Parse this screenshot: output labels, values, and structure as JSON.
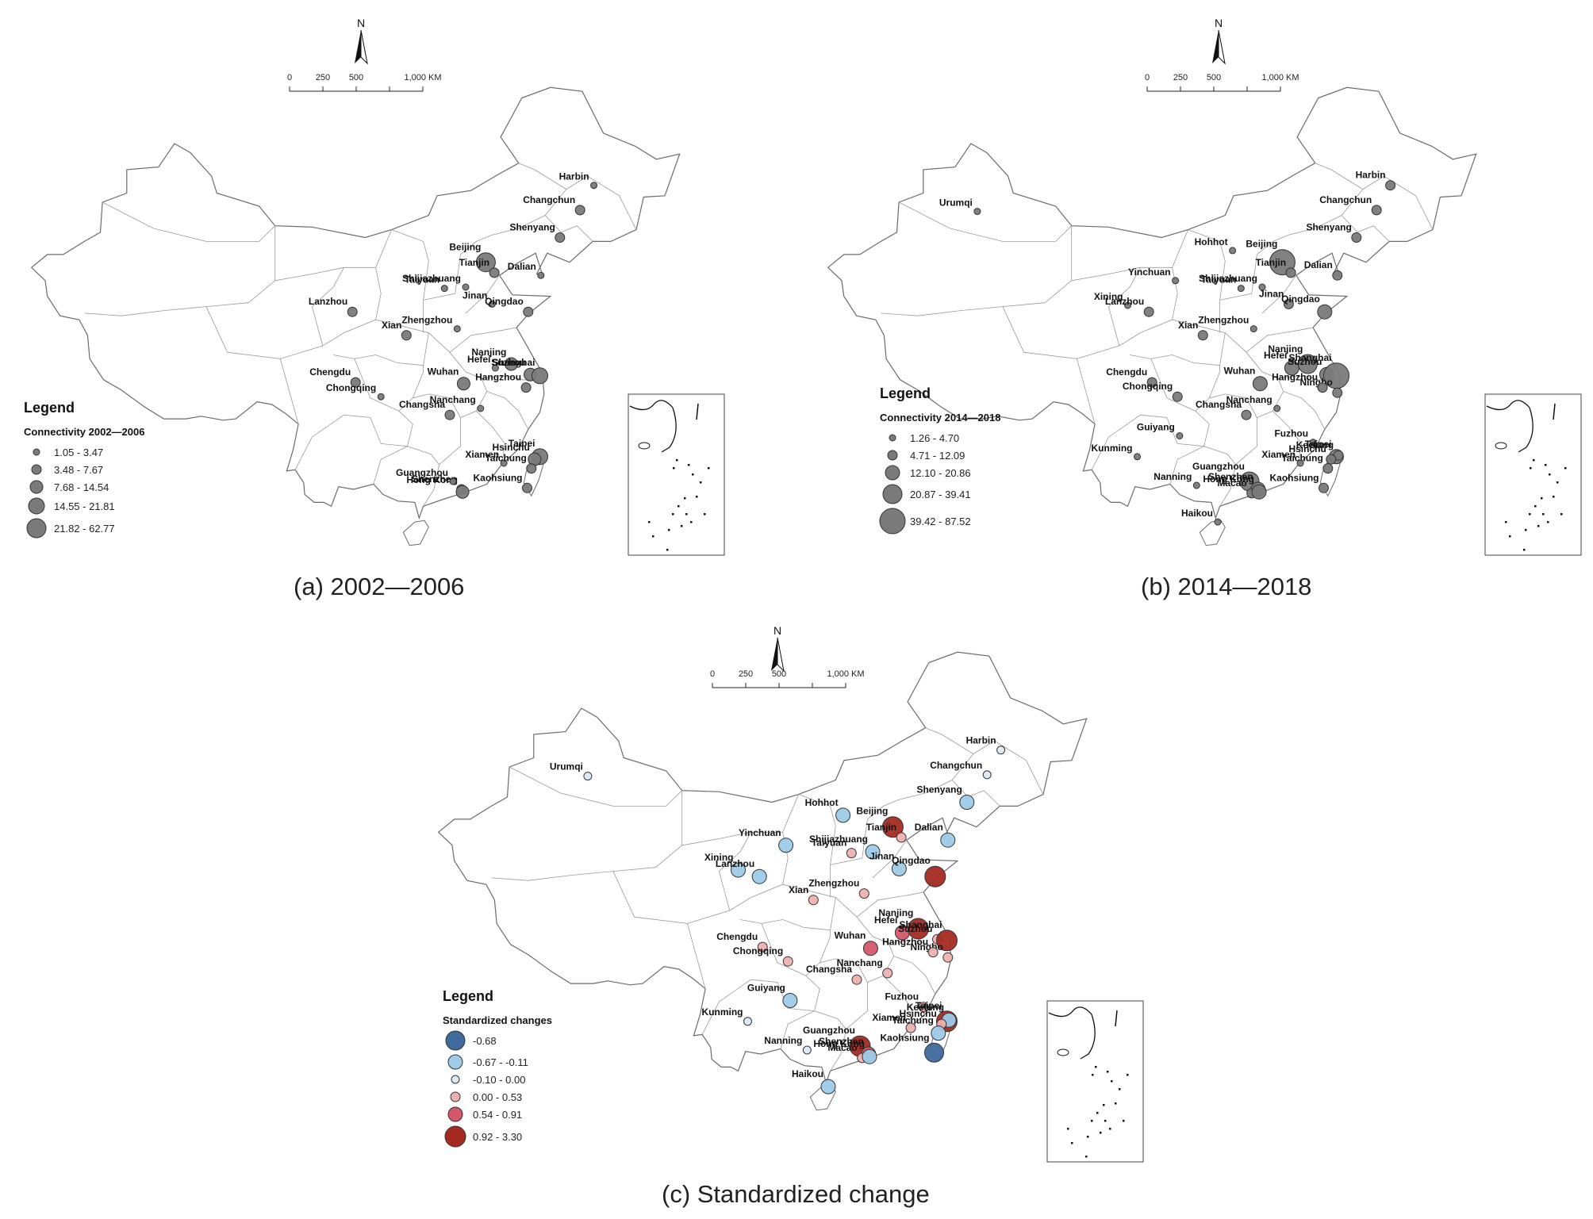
{
  "panels": [
    {
      "id": "a",
      "caption": "(a) 2002—2006",
      "legend": {
        "title": "Legend",
        "subtitle": "Connectivity 2002—2006",
        "classes": [
          {
            "label": "1.05 - 3.47",
            "r": 4,
            "color": "#7a7a7a"
          },
          {
            "label": "3.48 - 7.67",
            "r": 6,
            "color": "#7a7a7a"
          },
          {
            "label": "7.68 - 14.54",
            "r": 8,
            "color": "#7a7a7a"
          },
          {
            "label": "14.55 - 21.81",
            "r": 10,
            "color": "#7a7a7a"
          },
          {
            "label": "21.82 - 62.77",
            "r": 12,
            "color": "#7a7a7a"
          }
        ]
      },
      "scale": {
        "labels": [
          "0",
          "250",
          "500",
          "1,000 KM"
        ]
      },
      "north": "N",
      "cities": [
        {
          "name": "Harbin",
          "lon": 126.6,
          "lat": 45.8,
          "cls": 0
        },
        {
          "name": "Changchun",
          "lon": 125.3,
          "lat": 43.9,
          "cls": 1
        },
        {
          "name": "Shenyang",
          "lon": 123.4,
          "lat": 41.8,
          "cls": 1
        },
        {
          "name": "Beijing",
          "lon": 116.4,
          "lat": 39.9,
          "cls": 4
        },
        {
          "name": "Tianjin",
          "lon": 117.2,
          "lat": 39.1,
          "cls": 1
        },
        {
          "name": "Dalian",
          "lon": 121.6,
          "lat": 38.9,
          "cls": 0
        },
        {
          "name": "Taiyuan",
          "lon": 112.5,
          "lat": 37.9,
          "cls": 0
        },
        {
          "name": "Shijiazhuang",
          "lon": 114.5,
          "lat": 38.0,
          "cls": 0
        },
        {
          "name": "Jinan",
          "lon": 117.0,
          "lat": 36.7,
          "cls": 0
        },
        {
          "name": "Qingdao",
          "lon": 120.4,
          "lat": 36.1,
          "cls": 1
        },
        {
          "name": "Lanzhou",
          "lon": 103.8,
          "lat": 36.1,
          "cls": 1
        },
        {
          "name": "Xian",
          "lon": 108.9,
          "lat": 34.3,
          "cls": 1
        },
        {
          "name": "Zhengzhou",
          "lon": 113.7,
          "lat": 34.8,
          "cls": 0
        },
        {
          "name": "Hefei",
          "lon": 117.3,
          "lat": 31.8,
          "cls": 0
        },
        {
          "name": "Nanjing",
          "lon": 118.8,
          "lat": 32.1,
          "cls": 2
        },
        {
          "name": "Suzhou",
          "lon": 120.6,
          "lat": 31.3,
          "cls": 2
        },
        {
          "name": "Shanghai",
          "lon": 121.5,
          "lat": 31.2,
          "cls": 3
        },
        {
          "name": "Hangzhou",
          "lon": 120.2,
          "lat": 30.3,
          "cls": 1
        },
        {
          "name": "Wuhan",
          "lon": 114.3,
          "lat": 30.6,
          "cls": 2
        },
        {
          "name": "Chengdu",
          "lon": 104.1,
          "lat": 30.7,
          "cls": 1
        },
        {
          "name": "Chongqing",
          "lon": 106.5,
          "lat": 29.6,
          "cls": 0
        },
        {
          "name": "Nanchang",
          "lon": 115.9,
          "lat": 28.7,
          "cls": 0
        },
        {
          "name": "Changsha",
          "lon": 113.0,
          "lat": 28.2,
          "cls": 1
        },
        {
          "name": "Taipei",
          "lon": 121.5,
          "lat": 25.0,
          "cls": 3
        },
        {
          "name": "Hsinchu",
          "lon": 121.0,
          "lat": 24.8,
          "cls": 2
        },
        {
          "name": "Xiamen",
          "lon": 118.1,
          "lat": 24.5,
          "cls": 0
        },
        {
          "name": "Taichung",
          "lon": 120.7,
          "lat": 24.1,
          "cls": 1
        },
        {
          "name": "Kaohsiung",
          "lon": 120.3,
          "lat": 22.6,
          "cls": 1
        },
        {
          "name": "Shenzhen",
          "lon": 114.1,
          "lat": 22.5,
          "cls": 1
        },
        {
          "name": "Hong Kong",
          "lon": 114.2,
          "lat": 22.3,
          "cls": 2
        },
        {
          "name": "Guangzhou",
          "lon": 113.3,
          "lat": 23.1,
          "cls": 0
        }
      ]
    },
    {
      "id": "b",
      "caption": "(b) 2014—2018",
      "legend": {
        "title": "Legend",
        "subtitle": "Connectivity 2014—2018",
        "classes": [
          {
            "label": "1.26 - 4.70",
            "r": 4,
            "color": "#7a7a7a"
          },
          {
            "label": "4.71 - 12.09",
            "r": 6,
            "color": "#7a7a7a"
          },
          {
            "label": "12.10 - 20.86",
            "r": 9,
            "color": "#7a7a7a"
          },
          {
            "label": "20.87 - 39.41",
            "r": 12,
            "color": "#7a7a7a"
          },
          {
            "label": "39.42 - 87.52",
            "r": 16,
            "color": "#7a7a7a"
          }
        ]
      },
      "scale": {
        "labels": [
          "0",
          "250",
          "500",
          "1,000 KM"
        ]
      },
      "north": "N",
      "cities": [
        {
          "name": "Urumqi",
          "lon": 87.6,
          "lat": 43.8,
          "cls": 0
        },
        {
          "name": "Harbin",
          "lon": 126.6,
          "lat": 45.8,
          "cls": 1
        },
        {
          "name": "Changchun",
          "lon": 125.3,
          "lat": 43.9,
          "cls": 1
        },
        {
          "name": "Shenyang",
          "lon": 123.4,
          "lat": 41.8,
          "cls": 1
        },
        {
          "name": "Hohhot",
          "lon": 111.7,
          "lat": 40.8,
          "cls": 0
        },
        {
          "name": "Beijing",
          "lon": 116.4,
          "lat": 39.9,
          "cls": 4
        },
        {
          "name": "Tianjin",
          "lon": 117.2,
          "lat": 39.1,
          "cls": 1
        },
        {
          "name": "Dalian",
          "lon": 121.6,
          "lat": 38.9,
          "cls": 1
        },
        {
          "name": "Yinchuan",
          "lon": 106.3,
          "lat": 38.5,
          "cls": 0
        },
        {
          "name": "Taiyuan",
          "lon": 112.5,
          "lat": 37.9,
          "cls": 0
        },
        {
          "name": "Shijiazhuang",
          "lon": 114.5,
          "lat": 38.0,
          "cls": 0
        },
        {
          "name": "Jinan",
          "lon": 117.0,
          "lat": 36.7,
          "cls": 1
        },
        {
          "name": "Qingdao",
          "lon": 120.4,
          "lat": 36.1,
          "cls": 2
        },
        {
          "name": "Xining",
          "lon": 101.8,
          "lat": 36.6,
          "cls": 0
        },
        {
          "name": "Lanzhou",
          "lon": 103.8,
          "lat": 36.1,
          "cls": 1
        },
        {
          "name": "Xian",
          "lon": 108.9,
          "lat": 34.3,
          "cls": 1
        },
        {
          "name": "Zhengzhou",
          "lon": 113.7,
          "lat": 34.8,
          "cls": 0
        },
        {
          "name": "Hefei",
          "lon": 117.3,
          "lat": 31.8,
          "cls": 2
        },
        {
          "name": "Nanjing",
          "lon": 118.8,
          "lat": 32.1,
          "cls": 3
        },
        {
          "name": "Suzhou",
          "lon": 120.6,
          "lat": 31.3,
          "cls": 2
        },
        {
          "name": "Shanghai",
          "lon": 121.5,
          "lat": 31.2,
          "cls": 4
        },
        {
          "name": "Ningbo",
          "lon": 121.6,
          "lat": 29.9,
          "cls": 1
        },
        {
          "name": "Hangzhou",
          "lon": 120.2,
          "lat": 30.3,
          "cls": 1
        },
        {
          "name": "Wuhan",
          "lon": 114.3,
          "lat": 30.6,
          "cls": 2
        },
        {
          "name": "Chengdu",
          "lon": 104.1,
          "lat": 30.7,
          "cls": 1
        },
        {
          "name": "Chongqing",
          "lon": 106.5,
          "lat": 29.6,
          "cls": 1
        },
        {
          "name": "Nanchang",
          "lon": 115.9,
          "lat": 28.7,
          "cls": 0
        },
        {
          "name": "Changsha",
          "lon": 113.0,
          "lat": 28.2,
          "cls": 1
        },
        {
          "name": "Guiyang",
          "lon": 106.7,
          "lat": 26.6,
          "cls": 0
        },
        {
          "name": "Fuzhou",
          "lon": 119.3,
          "lat": 26.1,
          "cls": 0
        },
        {
          "name": "Taipei",
          "lon": 121.5,
          "lat": 25.0,
          "cls": 2
        },
        {
          "name": "Keelung",
          "lon": 121.7,
          "lat": 25.1,
          "cls": 1
        },
        {
          "name": "Hsinchu",
          "lon": 121.0,
          "lat": 24.8,
          "cls": 1
        },
        {
          "name": "Taichung",
          "lon": 120.7,
          "lat": 24.1,
          "cls": 1
        },
        {
          "name": "Xiamen",
          "lon": 118.1,
          "lat": 24.5,
          "cls": 0
        },
        {
          "name": "Kaohsiung",
          "lon": 120.3,
          "lat": 22.6,
          "cls": 1
        },
        {
          "name": "Kunming",
          "lon": 102.7,
          "lat": 25.0,
          "cls": 0
        },
        {
          "name": "Guangzhou",
          "lon": 113.3,
          "lat": 23.1,
          "cls": 3
        },
        {
          "name": "Shenzhen",
          "lon": 114.1,
          "lat": 22.5,
          "cls": 2
        },
        {
          "name": "Macao",
          "lon": 113.5,
          "lat": 22.2,
          "cls": 1
        },
        {
          "name": "Hong Kong",
          "lon": 114.2,
          "lat": 22.3,
          "cls": 2
        },
        {
          "name": "Nanning",
          "lon": 108.3,
          "lat": 22.8,
          "cls": 0
        },
        {
          "name": "Haikou",
          "lon": 110.3,
          "lat": 20.0,
          "cls": 0
        }
      ]
    },
    {
      "id": "c",
      "caption": "(c) Standardized change",
      "legend": {
        "title": "Legend",
        "subtitle": "Standardized changes",
        "classes": [
          {
            "label": "-0.68",
            "r": 12,
            "color": "#3f6a9b"
          },
          {
            "label": "-0.67 - -0.11",
            "r": 9,
            "color": "#9ecbe8"
          },
          {
            "label": "-0.10 - 0.00",
            "r": 5,
            "color": "#dceaf5"
          },
          {
            "label": "0.00 - 0.53",
            "r": 6,
            "color": "#eeb1ae"
          },
          {
            "label": "0.54 - 0.91",
            "r": 9,
            "color": "#d6576b"
          },
          {
            "label": "0.92 - 3.30",
            "r": 13,
            "color": "#a52a22"
          }
        ]
      },
      "scale": {
        "labels": [
          "0",
          "250",
          "500",
          "1,000 KM"
        ]
      },
      "north": "N",
      "cities": [
        {
          "name": "Urumqi",
          "lon": 87.6,
          "lat": 43.8,
          "cls": 2
        },
        {
          "name": "Harbin",
          "lon": 126.6,
          "lat": 45.8,
          "cls": 2
        },
        {
          "name": "Changchun",
          "lon": 125.3,
          "lat": 43.9,
          "cls": 2
        },
        {
          "name": "Shenyang",
          "lon": 123.4,
          "lat": 41.8,
          "cls": 1
        },
        {
          "name": "Hohhot",
          "lon": 111.7,
          "lat": 40.8,
          "cls": 1
        },
        {
          "name": "Beijing",
          "lon": 116.4,
          "lat": 39.9,
          "cls": 5
        },
        {
          "name": "Tianjin",
          "lon": 117.2,
          "lat": 39.1,
          "cls": 3
        },
        {
          "name": "Dalian",
          "lon": 121.6,
          "lat": 38.9,
          "cls": 1
        },
        {
          "name": "Yinchuan",
          "lon": 106.3,
          "lat": 38.5,
          "cls": 1
        },
        {
          "name": "Taiyuan",
          "lon": 112.5,
          "lat": 37.9,
          "cls": 3
        },
        {
          "name": "Shijiazhuang",
          "lon": 114.5,
          "lat": 38.0,
          "cls": 1
        },
        {
          "name": "Jinan",
          "lon": 117.0,
          "lat": 36.7,
          "cls": 1
        },
        {
          "name": "Qingdao",
          "lon": 120.4,
          "lat": 36.1,
          "cls": 5
        },
        {
          "name": "Xining",
          "lon": 101.8,
          "lat": 36.6,
          "cls": 1
        },
        {
          "name": "Lanzhou",
          "lon": 103.8,
          "lat": 36.1,
          "cls": 1
        },
        {
          "name": "Xian",
          "lon": 108.9,
          "lat": 34.3,
          "cls": 3
        },
        {
          "name": "Zhengzhou",
          "lon": 113.7,
          "lat": 34.8,
          "cls": 3
        },
        {
          "name": "Hefei",
          "lon": 117.3,
          "lat": 31.8,
          "cls": 4
        },
        {
          "name": "Nanjing",
          "lon": 118.8,
          "lat": 32.1,
          "cls": 5
        },
        {
          "name": "Suzhou",
          "lon": 120.6,
          "lat": 31.3,
          "cls": 3
        },
        {
          "name": "Shanghai",
          "lon": 121.5,
          "lat": 31.2,
          "cls": 5
        },
        {
          "name": "Ningbo",
          "lon": 121.6,
          "lat": 29.9,
          "cls": 3
        },
        {
          "name": "Hangzhou",
          "lon": 120.2,
          "lat": 30.3,
          "cls": 3
        },
        {
          "name": "Wuhan",
          "lon": 114.3,
          "lat": 30.6,
          "cls": 4
        },
        {
          "name": "Chengdu",
          "lon": 104.1,
          "lat": 30.7,
          "cls": 3
        },
        {
          "name": "Chongqing",
          "lon": 106.5,
          "lat": 29.6,
          "cls": 3
        },
        {
          "name": "Nanchang",
          "lon": 115.9,
          "lat": 28.7,
          "cls": 3
        },
        {
          "name": "Changsha",
          "lon": 113.0,
          "lat": 28.2,
          "cls": 3
        },
        {
          "name": "Guiyang",
          "lon": 106.7,
          "lat": 26.6,
          "cls": 1
        },
        {
          "name": "Fuzhou",
          "lon": 119.3,
          "lat": 26.1,
          "cls": 3
        },
        {
          "name": "Taipei",
          "lon": 121.5,
          "lat": 25.0,
          "cls": 5
        },
        {
          "name": "Keelung",
          "lon": 121.7,
          "lat": 25.1,
          "cls": 1
        },
        {
          "name": "Hsinchu",
          "lon": 121.0,
          "lat": 24.8,
          "cls": 3
        },
        {
          "name": "Taichung",
          "lon": 120.7,
          "lat": 24.1,
          "cls": 1
        },
        {
          "name": "Xiamen",
          "lon": 118.1,
          "lat": 24.5,
          "cls": 3
        },
        {
          "name": "Kaohsiung",
          "lon": 120.3,
          "lat": 22.6,
          "cls": 0
        },
        {
          "name": "Kunming",
          "lon": 102.7,
          "lat": 25.0,
          "cls": 2
        },
        {
          "name": "Guangzhou",
          "lon": 113.3,
          "lat": 23.1,
          "cls": 5
        },
        {
          "name": "Shenzhen",
          "lon": 114.1,
          "lat": 22.5,
          "cls": 4
        },
        {
          "name": "Macao",
          "lon": 113.5,
          "lat": 22.2,
          "cls": 3
        },
        {
          "name": "Hong Kong",
          "lon": 114.2,
          "lat": 22.3,
          "cls": 1
        },
        {
          "name": "Nanning",
          "lon": 108.3,
          "lat": 22.8,
          "cls": 2
        },
        {
          "name": "Haikou",
          "lon": 110.3,
          "lat": 20.0,
          "cls": 1
        }
      ]
    }
  ]
}
